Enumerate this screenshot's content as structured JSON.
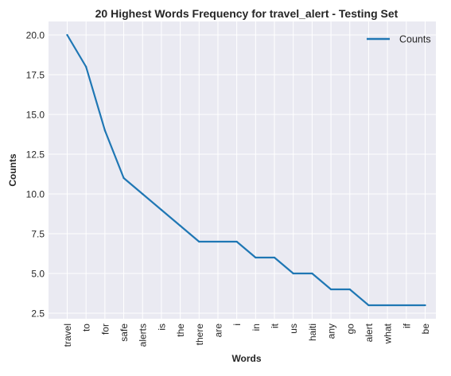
{
  "chart_data": {
    "type": "line",
    "title": "20 Highest Words Frequency for travel_alert - Testing Set",
    "xlabel": "Words",
    "ylabel": "Counts",
    "categories": [
      "travel",
      "to",
      "for",
      "safe",
      "alerts",
      "is",
      "the",
      "there",
      "are",
      "i",
      "in",
      "it",
      "us",
      "haiti",
      "any",
      "go",
      "alert",
      "what",
      "if",
      "be"
    ],
    "series": [
      {
        "name": "Counts",
        "values": [
          20,
          18,
          14,
          11,
          10,
          9,
          8,
          7,
          7,
          7,
          6,
          6,
          5,
          5,
          4,
          4,
          3,
          3,
          3,
          3
        ]
      }
    ],
    "ylim": [
      2.15,
      20.85
    ],
    "yticks": [
      2.5,
      5.0,
      7.5,
      10.0,
      12.5,
      15.0,
      17.5,
      20.0
    ],
    "ytick_labels": [
      "2.5",
      "5.0",
      "7.5",
      "10.0",
      "12.5",
      "15.0",
      "17.5",
      "20.0"
    ],
    "grid": true,
    "legend_position": "top-right",
    "colors": {
      "line": "#1f77b4",
      "plot_background": "#eaeaf2",
      "grid": "#ffffff",
      "text": "#262626"
    }
  }
}
